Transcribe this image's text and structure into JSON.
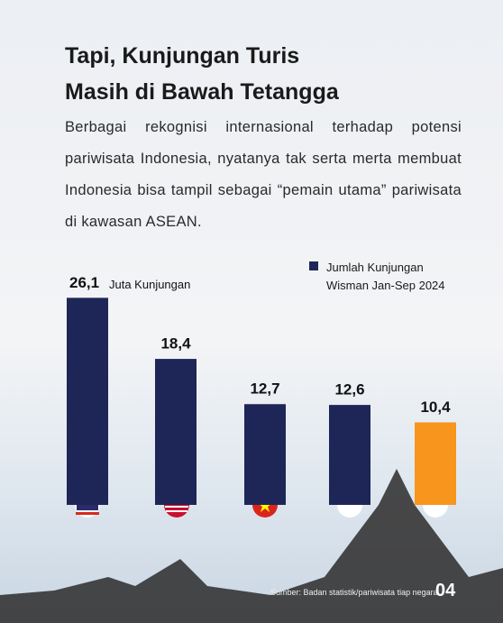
{
  "chart_data": {
    "type": "bar",
    "title": "Tapi, Kunjungan Turis Masih di Bawah Tetangga",
    "title_lines": [
      "Tapi, Kunjungan Turis",
      "Masih di Bawah Tetangga"
    ],
    "subtitle": "Berbagai rekognisi internasional terhadap potensi pariwisata Indonesia, nyatanya tak serta merta membuat Indonesia bisa tampil sebagai “pemain utama” pariwisata di kawasan ASEAN.",
    "unit_label": "Juta Kunjungan",
    "series": [
      {
        "name": "Jumlah Kunjungan Wisman Jan-Sep 2024",
        "color": "#1d2657",
        "values": [
          26.1,
          18.4,
          12.7,
          12.6,
          10.4
        ],
        "value_labels": [
          "26,1",
          "18,4",
          "12,7",
          "12,6",
          "10,4"
        ],
        "colors": [
          "#1d2657",
          "#1d2657",
          "#1d2657",
          "#1d2657",
          "#f7951d"
        ]
      }
    ],
    "source": "Sumber: Badan statistik/pariwisata tiap negara",
    "page_number": "04"
  }
}
